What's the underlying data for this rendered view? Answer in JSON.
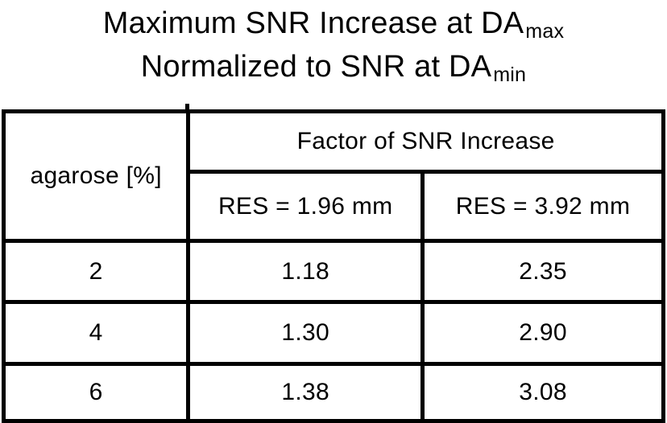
{
  "title": {
    "line1_prefix": "Maximum SNR Increase at DA",
    "line1_sub": "max",
    "line2_prefix": "Normalized to SNR at DA",
    "line2_sub": "min"
  },
  "table": {
    "corner_header": "agarose [%]",
    "group_header": "Factor of SNR Increase",
    "col_headers": [
      "RES = 1.96 mm",
      "RES = 3.92 mm"
    ],
    "rows": [
      {
        "agarose": "2",
        "res_196": "1.18",
        "res_392": "2.35"
      },
      {
        "agarose": "4",
        "res_196": "1.30",
        "res_392": "2.90"
      },
      {
        "agarose": "6",
        "res_196": "1.38",
        "res_392": "3.08"
      }
    ]
  },
  "chart_data": {
    "type": "table",
    "title": "Maximum SNR Increase at DAmax Normalized to SNR at DAmin",
    "categories": [
      "2",
      "4",
      "6"
    ],
    "category_label": "agarose [%]",
    "group_label": "Factor of SNR Increase",
    "series": [
      {
        "name": "RES = 1.96 mm",
        "values": [
          1.18,
          1.3,
          1.38
        ]
      },
      {
        "name": "RES = 3.92 mm",
        "values": [
          2.35,
          2.9,
          3.08
        ]
      }
    ]
  },
  "colors": {
    "background": "#ffffff",
    "text": "#000000",
    "border": "#000000"
  }
}
